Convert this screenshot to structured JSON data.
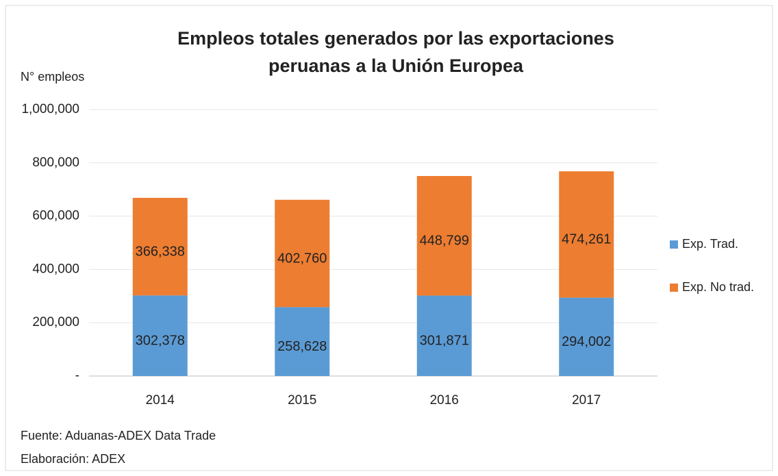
{
  "chart_data": {
    "type": "bar",
    "stacked": true,
    "title": [
      "Empleos totales generados por las exportaciones",
      "peruanas a la Unión Europea"
    ],
    "ylabel": "N° empleos",
    "categories": [
      "2014",
      "2015",
      "2016",
      "2017"
    ],
    "series": [
      {
        "name": "Exp. Trad.",
        "color": "#5b9bd5",
        "values": [
          302378,
          258628,
          301871,
          294002
        ],
        "value_labels": [
          "302,378",
          "258,628",
          "301,871",
          "294,002"
        ]
      },
      {
        "name": "Exp. No trad.",
        "color": "#ed7d31",
        "values": [
          366338,
          402760,
          448799,
          474261
        ],
        "value_labels": [
          "366,338",
          "402,760",
          "448,799",
          "474,261"
        ]
      }
    ],
    "ylim": [
      0,
      1000000
    ],
    "yticks": [
      {
        "value": 0,
        "label": "-"
      },
      {
        "value": 200000,
        "label": "200,000"
      },
      {
        "value": 400000,
        "label": "400,000"
      },
      {
        "value": 600000,
        "label": "600,000"
      },
      {
        "value": 800000,
        "label": "800,000"
      },
      {
        "value": 1000000,
        "label": "1,000,000"
      }
    ],
    "grid": true,
    "legend": "right",
    "notes": [
      "Fuente: Aduanas-ADEX Data Trade",
      "Elaboración: ADEX"
    ]
  }
}
